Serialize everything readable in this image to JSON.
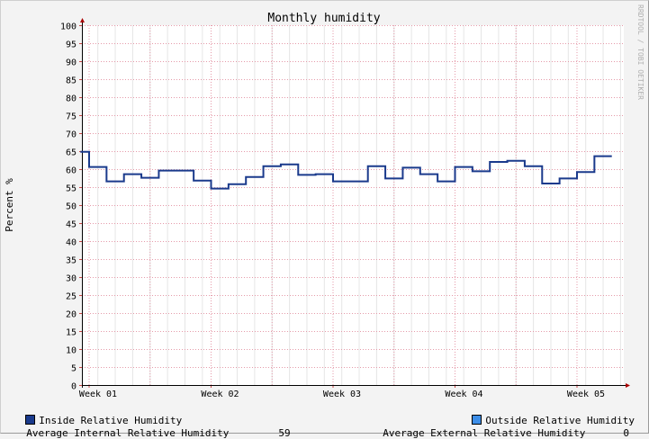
{
  "chart_data": {
    "type": "line",
    "title": "Monthly humidity",
    "ylabel": "Percent %",
    "xlabel": "",
    "watermark": "RRDTOOL / TOBI OETIKER",
    "ylim": [
      0,
      100
    ],
    "yticks": [
      0,
      5,
      10,
      15,
      20,
      25,
      30,
      35,
      40,
      45,
      50,
      55,
      60,
      65,
      70,
      75,
      80,
      85,
      90,
      95,
      100
    ],
    "xlim": [
      0,
      30
    ],
    "xticks": [
      {
        "x": 0,
        "label": "Week 01"
      },
      {
        "x": 7,
        "label": "Week 02"
      },
      {
        "x": 14,
        "label": "Week 03"
      },
      {
        "x": 21,
        "label": "Week 04"
      },
      {
        "x": 28,
        "label": "Week 05"
      }
    ],
    "grid": true,
    "series": [
      {
        "name": "Inside Relative Humidity",
        "color": "#1a3a8c",
        "steps": [
          [
            -0.5,
            64.8
          ],
          [
            0.0,
            60.6
          ],
          [
            1.0,
            56.6
          ],
          [
            2.0,
            58.6
          ],
          [
            3.0,
            57.6
          ],
          [
            4.0,
            59.6
          ],
          [
            6.0,
            56.8
          ],
          [
            7.0,
            54.6
          ],
          [
            8.0,
            55.8
          ],
          [
            9.0,
            57.8
          ],
          [
            10.0,
            60.8
          ],
          [
            11.0,
            61.3
          ],
          [
            12.0,
            58.4
          ],
          [
            13.0,
            58.6
          ],
          [
            14.0,
            56.6
          ],
          [
            16.0,
            60.8
          ],
          [
            17.0,
            57.4
          ],
          [
            18.0,
            60.4
          ],
          [
            19.0,
            58.6
          ],
          [
            20.0,
            56.6
          ],
          [
            21.0,
            60.6
          ],
          [
            22.0,
            59.4
          ],
          [
            23.0,
            62.0
          ],
          [
            24.0,
            62.3
          ],
          [
            25.0,
            60.8
          ],
          [
            26.0,
            56.0
          ],
          [
            27.0,
            57.4
          ],
          [
            28.0,
            59.2
          ],
          [
            29.0,
            63.6
          ]
        ],
        "end": 30.0
      },
      {
        "name": "Outside Relative Humidity",
        "color": "#3d8ee8",
        "steps": []
      }
    ],
    "legend": {
      "inside_label": "Inside Relative Humidity",
      "outside_label": "Outside Relative Humidity",
      "avg_internal_label": "Average Internal Relative Humidity",
      "avg_internal_value": "59",
      "avg_external_label": "Average External Relative Humidity",
      "avg_external_value": "0"
    }
  }
}
